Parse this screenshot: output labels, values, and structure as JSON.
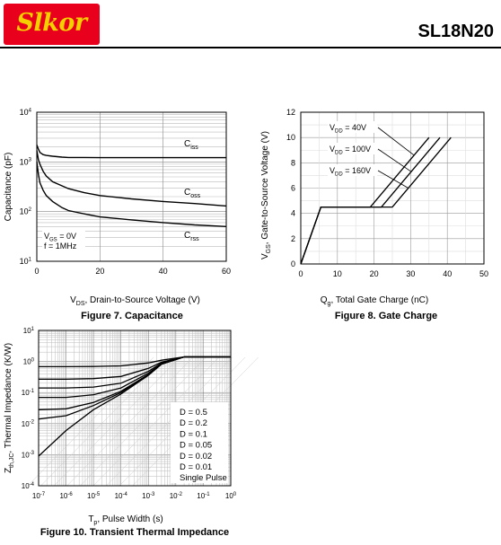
{
  "header": {
    "logo_text": "Slkor",
    "part_number": "SL18N20",
    "colors": {
      "logo_bg": "#e8001c",
      "logo_text": "#f4d000"
    }
  },
  "figures": {
    "fig7": {
      "caption": "Figure 7. Capacitance"
    },
    "fig8": {
      "caption": "Figure 8. Gate Charge"
    },
    "fig10": {
      "caption": "Figure 10. Transient Thermal Impedance"
    }
  },
  "chart_data": [
    {
      "id": "fig7",
      "type": "line",
      "xscale": "linear",
      "yscale": "log",
      "xlim": [
        0,
        60
      ],
      "ylim": [
        10,
        10000
      ],
      "xticks": [
        0,
        20,
        40,
        60
      ],
      "yticks": [
        10,
        100,
        1000,
        10000
      ],
      "ylabel": "Capacitance (pF)",
      "xlabel": {
        "main": "V",
        "sub": "DS",
        "rest": ", Drain-to-Source Voltage (V)"
      },
      "annotation": [
        {
          "main": "V",
          "sub": "GS",
          "rest": " = 0V"
        },
        {
          "main": "f = 1MHz",
          "sub": "",
          "rest": ""
        }
      ],
      "series": [
        {
          "name": {
            "main": "C",
            "sub": "iss"
          },
          "x": [
            0,
            0.5,
            1,
            2,
            3,
            5,
            8,
            10,
            15,
            20,
            30,
            40,
            50,
            60
          ],
          "y": [
            2200,
            1800,
            1550,
            1400,
            1350,
            1300,
            1250,
            1230,
            1230,
            1220,
            1220,
            1220,
            1220,
            1220
          ]
        },
        {
          "name": {
            "main": "C",
            "sub": "oss"
          },
          "x": [
            0,
            0.5,
            1,
            2,
            3,
            5,
            8,
            10,
            15,
            20,
            30,
            40,
            50,
            60
          ],
          "y": [
            1700,
            1100,
            900,
            650,
            520,
            400,
            330,
            290,
            240,
            210,
            180,
            160,
            145,
            130
          ]
        },
        {
          "name": {
            "main": "C",
            "sub": "rss"
          },
          "x": [
            0,
            0.5,
            1,
            2,
            3,
            5,
            8,
            10,
            15,
            20,
            30,
            40,
            50,
            60
          ],
          "y": [
            1000,
            560,
            380,
            270,
            210,
            160,
            120,
            105,
            90,
            78,
            68,
            60,
            54,
            50
          ]
        }
      ]
    },
    {
      "id": "fig8",
      "type": "line",
      "xscale": "linear",
      "yscale": "linear",
      "xlim": [
        0,
        50
      ],
      "ylim": [
        0,
        12
      ],
      "xticks": [
        0,
        10,
        20,
        30,
        40,
        50
      ],
      "yticks": [
        0,
        2,
        4,
        6,
        8,
        10,
        12
      ],
      "ylabel": {
        "main": "V",
        "sub": "GS",
        "rest": ", Gate-to-Source Voltage (V)"
      },
      "xlabel": {
        "main": "Q",
        "sub": "g",
        "rest": ", Total Gate Charge (nC)"
      },
      "series": [
        {
          "name": {
            "main": "V",
            "sub": "DD",
            "rest": " = 40V"
          },
          "x": [
            0,
            5.5,
            19,
            35
          ],
          "y": [
            0,
            4.5,
            4.5,
            10
          ]
        },
        {
          "name": {
            "main": "V",
            "sub": "DD",
            "rest": " = 100V"
          },
          "x": [
            0,
            5.5,
            22,
            38
          ],
          "y": [
            0,
            4.5,
            4.5,
            10
          ]
        },
        {
          "name": {
            "main": "V",
            "sub": "DD",
            "rest": " = 160V"
          },
          "x": [
            0,
            5.5,
            25,
            41
          ],
          "y": [
            0,
            4.5,
            4.5,
            10
          ]
        }
      ]
    },
    {
      "id": "fig10",
      "type": "line",
      "xscale": "log",
      "yscale": "log",
      "xlim": [
        1e-07,
        1
      ],
      "ylim": [
        0.0001,
        10
      ],
      "xticks": [
        {
          "base": "10",
          "exp": "-7"
        },
        {
          "base": "10",
          "exp": "-6"
        },
        {
          "base": "10",
          "exp": "-5"
        },
        {
          "base": "10",
          "exp": "-4"
        },
        {
          "base": "10",
          "exp": "-3"
        },
        {
          "base": "10",
          "exp": "-2"
        },
        {
          "base": "10",
          "exp": "-1"
        },
        {
          "base": "10",
          "exp": "0"
        }
      ],
      "yticks": [
        {
          "base": "10",
          "exp": "1"
        },
        {
          "base": "10",
          "exp": "0"
        },
        {
          "base": "10",
          "exp": "-1"
        },
        {
          "base": "10",
          "exp": "-2"
        },
        {
          "base": "10",
          "exp": "-3"
        },
        {
          "base": "10",
          "exp": "-4"
        }
      ],
      "ylabel": {
        "main": "Z",
        "sub": "th,JC",
        "rest": ", Thermal Impedance (K/W)"
      },
      "xlabel": {
        "main": "T",
        "sub": "p",
        "rest": ", Pulse Width (s)"
      },
      "legend": [
        "D = 0.5",
        "D = 0.2",
        "D = 0.1",
        "D = 0.05",
        "D = 0.02",
        "D = 0.01",
        "Single Pulse"
      ],
      "series": [
        {
          "name": "D = 0.5",
          "x": [
            1e-07,
            1e-06,
            1e-05,
            0.0001,
            0.001,
            0.003,
            0.02,
            1
          ],
          "y": [
            0.68,
            0.68,
            0.69,
            0.72,
            0.9,
            1.1,
            1.4,
            1.4
          ]
        },
        {
          "name": "D = 0.2",
          "x": [
            1e-07,
            1e-06,
            1e-05,
            0.0001,
            0.001,
            0.003,
            0.02,
            1
          ],
          "y": [
            0.27,
            0.27,
            0.28,
            0.33,
            0.6,
            0.95,
            1.4,
            1.4
          ]
        },
        {
          "name": "D = 0.1",
          "x": [
            1e-07,
            1e-06,
            1e-05,
            0.0001,
            0.001,
            0.003,
            0.02,
            1
          ],
          "y": [
            0.14,
            0.14,
            0.15,
            0.2,
            0.48,
            0.88,
            1.4,
            1.4
          ]
        },
        {
          "name": "D = 0.05",
          "x": [
            1e-07,
            1e-06,
            1e-05,
            0.0001,
            0.001,
            0.003,
            0.02,
            1
          ],
          "y": [
            0.07,
            0.07,
            0.085,
            0.14,
            0.42,
            0.85,
            1.4,
            1.4
          ]
        },
        {
          "name": "D = 0.02",
          "x": [
            1e-07,
            1e-06,
            1e-05,
            0.0001,
            0.001,
            0.003,
            0.02,
            1
          ],
          "y": [
            0.028,
            0.03,
            0.048,
            0.11,
            0.38,
            0.83,
            1.4,
            1.4
          ]
        },
        {
          "name": "D = 0.01",
          "x": [
            1e-07,
            1e-06,
            1e-05,
            0.0001,
            0.001,
            0.003,
            0.02,
            1
          ],
          "y": [
            0.014,
            0.018,
            0.038,
            0.1,
            0.37,
            0.82,
            1.4,
            1.4
          ]
        },
        {
          "name": "Single Pulse",
          "x": [
            1e-07,
            1e-06,
            1e-05,
            0.0001,
            0.001,
            0.003,
            0.02,
            1
          ],
          "y": [
            0.0009,
            0.006,
            0.028,
            0.09,
            0.36,
            0.82,
            1.4,
            1.4
          ]
        }
      ]
    }
  ]
}
